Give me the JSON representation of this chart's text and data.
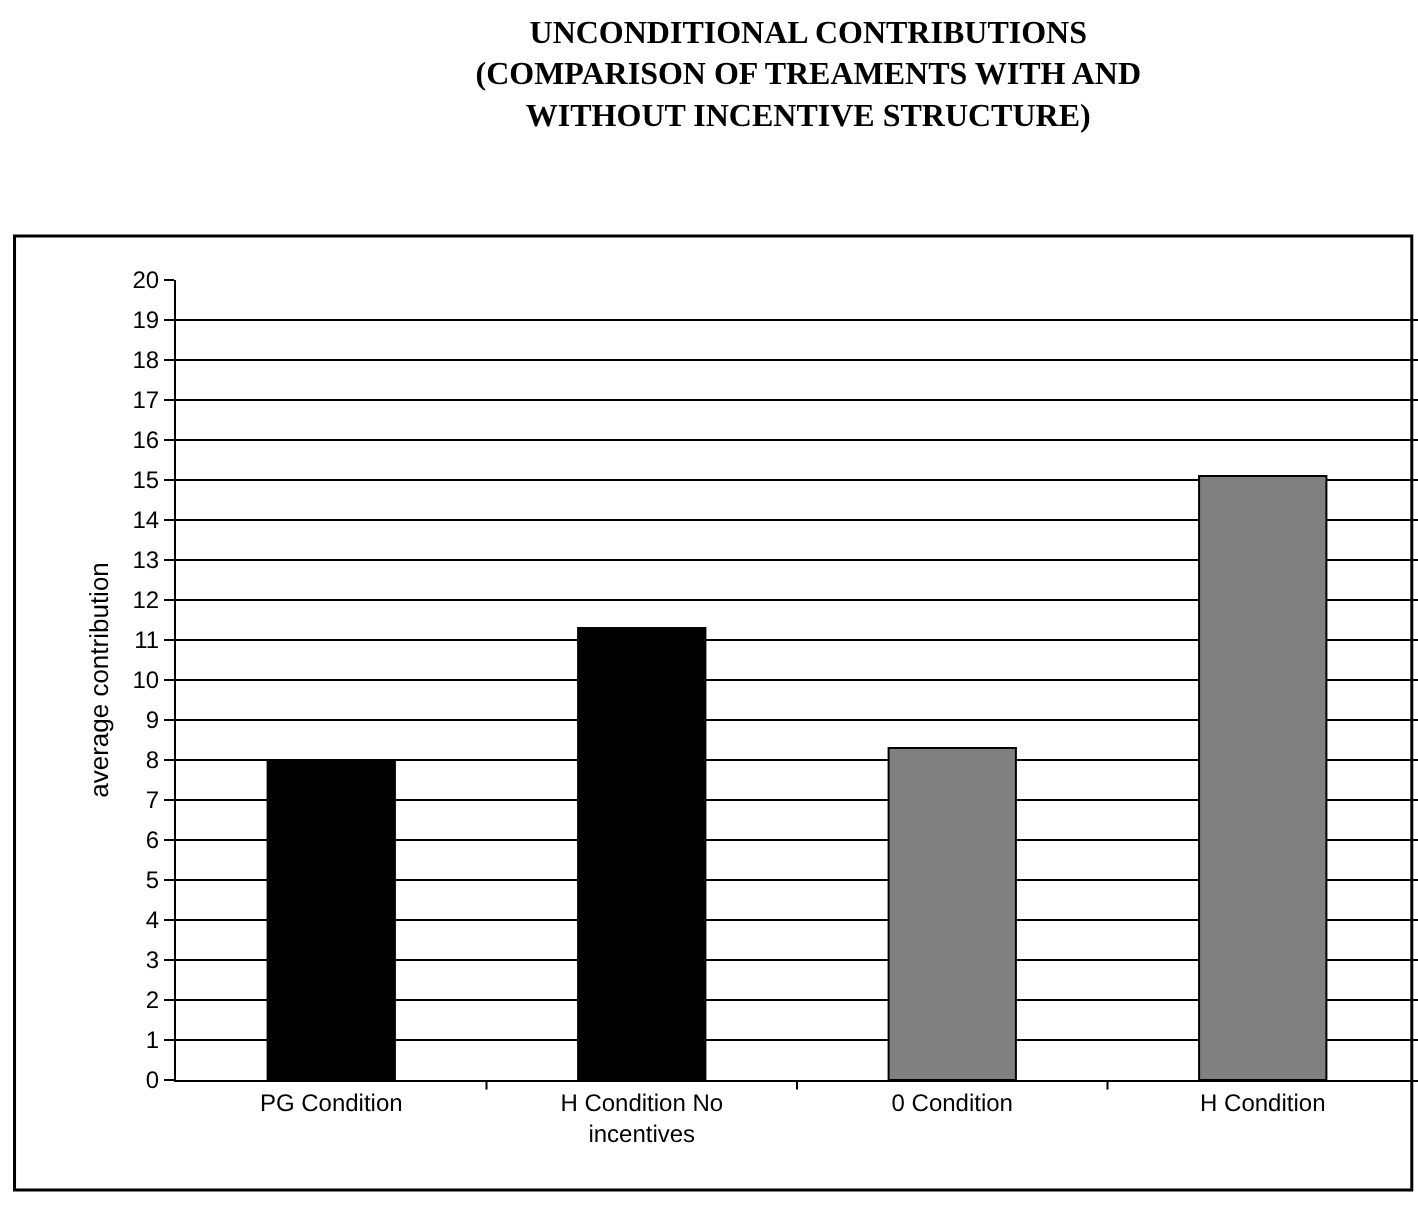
{
  "chart_data": {
    "type": "bar",
    "title": "UNCONDITIONAL CONTRIBUTIONS\n(COMPARISON OF TREAMENTS WITH AND\nWITHOUT INCENTIVE STRUCTURE)",
    "ylabel": "average contribution",
    "categories": [
      "PG Condition",
      "H Condition No incentives",
      "0 Condition",
      "H Condition"
    ],
    "values": [
      8,
      11.3,
      8.3,
      15.1
    ],
    "colors": [
      "#000000",
      "#000000",
      "#808080",
      "#808080"
    ],
    "ylim": [
      0,
      20
    ],
    "yticks": [
      0,
      1,
      2,
      3,
      4,
      5,
      6,
      7,
      8,
      9,
      10,
      11,
      12,
      13,
      14,
      15,
      16,
      17,
      18,
      19,
      20
    ],
    "grid": "y"
  }
}
